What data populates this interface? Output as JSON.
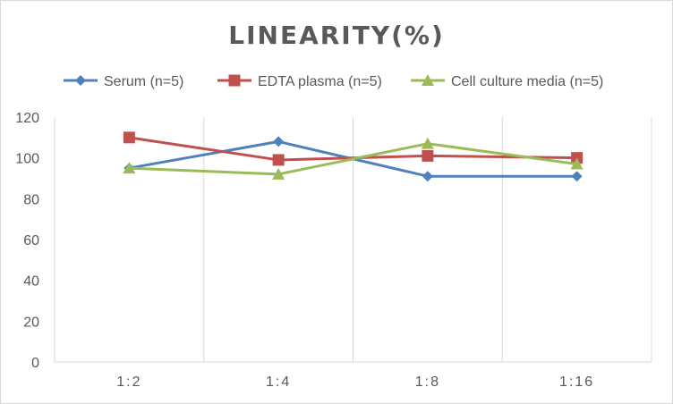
{
  "chart_data": {
    "type": "line",
    "title": "LINEARITY(%)",
    "xlabel": "",
    "ylabel": "",
    "categories": [
      "1:2",
      "1:4",
      "1:8",
      "1:16"
    ],
    "ylim": [
      0,
      120
    ],
    "yticks": [
      0,
      20,
      40,
      60,
      80,
      100,
      120
    ],
    "grid": "vertical",
    "legend_position": "top",
    "series": [
      {
        "name": "Serum (n=5)",
        "values": [
          95,
          108,
          91,
          91
        ],
        "color": "#4f81bd",
        "marker": "diamond"
      },
      {
        "name": "EDTA plasma (n=5)",
        "values": [
          110,
          99,
          101,
          100
        ],
        "color": "#c0504d",
        "marker": "square"
      },
      {
        "name": "Cell culture media (n=5)",
        "values": [
          95,
          92,
          107,
          97
        ],
        "color": "#9bbb59",
        "marker": "triangle"
      }
    ]
  }
}
